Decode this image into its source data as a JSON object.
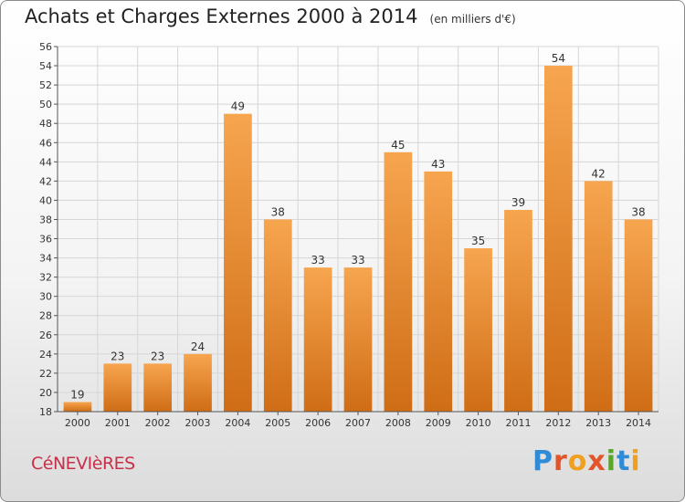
{
  "header": {
    "title": "Achats et Charges Externes 2000 à 2014",
    "subtitle": "(en milliers d'€)"
  },
  "footer": {
    "commune": "CéNEVIèRES",
    "brand": [
      "P",
      "r",
      "o",
      "x",
      "i",
      "t",
      "i"
    ]
  },
  "colors": {
    "bar_top": "#f7a54f",
    "bar_bottom": "#cf6d16",
    "gridline": "#d6d6d6",
    "axis": "#555555",
    "text": "#333333"
  },
  "chart_data": {
    "type": "bar",
    "title": "Achats et Charges Externes 2000 à 2014",
    "subtitle": "(en milliers d'€)",
    "xlabel": "",
    "ylabel": "",
    "categories": [
      "2000",
      "2001",
      "2002",
      "2003",
      "2004",
      "2005",
      "2006",
      "2007",
      "2008",
      "2009",
      "2010",
      "2011",
      "2012",
      "2013",
      "2014"
    ],
    "values": [
      19,
      23,
      23,
      24,
      49,
      38,
      33,
      33,
      45,
      43,
      35,
      39,
      54,
      42,
      38
    ],
    "ylim": [
      18,
      56
    ],
    "yticks": [
      18,
      20,
      22,
      24,
      26,
      28,
      30,
      32,
      34,
      36,
      38,
      40,
      42,
      44,
      46,
      48,
      50,
      52,
      54,
      56
    ],
    "grid": true,
    "legend": "none"
  }
}
